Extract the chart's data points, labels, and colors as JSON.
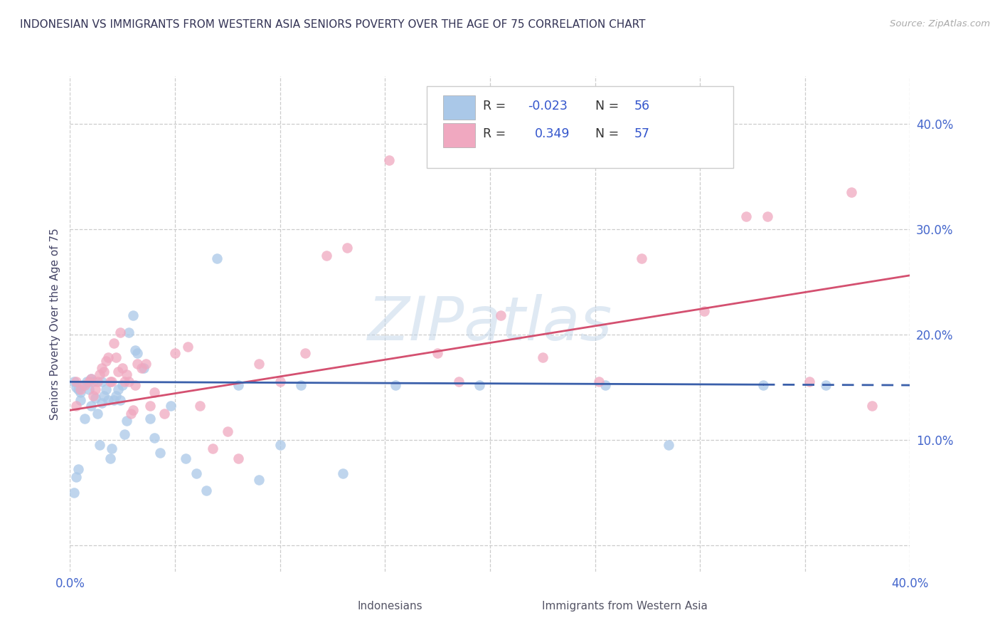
{
  "title": "INDONESIAN VS IMMIGRANTS FROM WESTERN ASIA SENIORS POVERTY OVER THE AGE OF 75 CORRELATION CHART",
  "source": "Source: ZipAtlas.com",
  "ylabel": "Seniors Poverty Over the Age of 75",
  "xlim": [
    0.0,
    0.4
  ],
  "ylim": [
    -0.025,
    0.445
  ],
  "R_blue": -0.023,
  "N_blue": 56,
  "R_pink": 0.349,
  "N_pink": 57,
  "blue_color": "#aac8e8",
  "pink_color": "#f0a8c0",
  "blue_line_color": "#3a5faa",
  "pink_line_color": "#d45070",
  "label_blue": "Indonesians",
  "label_pink": "Immigrants from Western Asia",
  "watermark": "ZIPatlas",
  "blue_x": [
    0.002,
    0.003,
    0.004,
    0.005,
    0.005,
    0.006,
    0.007,
    0.008,
    0.009,
    0.01,
    0.01,
    0.011,
    0.012,
    0.013,
    0.014,
    0.015,
    0.015,
    0.016,
    0.017,
    0.018,
    0.019,
    0.02,
    0.021,
    0.022,
    0.023,
    0.024,
    0.025,
    0.026,
    0.027,
    0.028,
    0.03,
    0.031,
    0.032,
    0.035,
    0.038,
    0.04,
    0.043,
    0.048,
    0.055,
    0.06,
    0.065,
    0.07,
    0.08,
    0.09,
    0.1,
    0.11,
    0.13,
    0.155,
    0.195,
    0.255,
    0.285,
    0.33,
    0.36,
    0.002,
    0.003,
    0.004
  ],
  "blue_y": [
    0.155,
    0.15,
    0.148,
    0.145,
    0.138,
    0.152,
    0.12,
    0.155,
    0.148,
    0.158,
    0.132,
    0.155,
    0.14,
    0.125,
    0.095,
    0.155,
    0.135,
    0.142,
    0.148,
    0.138,
    0.082,
    0.092,
    0.138,
    0.142,
    0.148,
    0.138,
    0.152,
    0.105,
    0.118,
    0.202,
    0.218,
    0.185,
    0.182,
    0.168,
    0.12,
    0.102,
    0.088,
    0.132,
    0.082,
    0.068,
    0.052,
    0.272,
    0.152,
    0.062,
    0.095,
    0.152,
    0.068,
    0.152,
    0.152,
    0.152,
    0.095,
    0.152,
    0.152,
    0.05,
    0.065,
    0.072
  ],
  "pink_x": [
    0.003,
    0.005,
    0.007,
    0.009,
    0.01,
    0.011,
    0.012,
    0.013,
    0.014,
    0.015,
    0.016,
    0.017,
    0.018,
    0.019,
    0.02,
    0.021,
    0.022,
    0.023,
    0.024,
    0.025,
    0.026,
    0.027,
    0.028,
    0.029,
    0.03,
    0.031,
    0.032,
    0.034,
    0.036,
    0.038,
    0.04,
    0.045,
    0.05,
    0.056,
    0.062,
    0.068,
    0.075,
    0.08,
    0.09,
    0.1,
    0.112,
    0.122,
    0.132,
    0.152,
    0.175,
    0.185,
    0.205,
    0.225,
    0.252,
    0.272,
    0.302,
    0.322,
    0.332,
    0.352,
    0.372,
    0.382,
    0.003
  ],
  "pink_y": [
    0.132,
    0.148,
    0.152,
    0.155,
    0.158,
    0.142,
    0.148,
    0.155,
    0.162,
    0.168,
    0.165,
    0.175,
    0.178,
    0.155,
    0.155,
    0.192,
    0.178,
    0.165,
    0.202,
    0.168,
    0.155,
    0.162,
    0.155,
    0.125,
    0.128,
    0.152,
    0.172,
    0.168,
    0.172,
    0.132,
    0.145,
    0.125,
    0.182,
    0.188,
    0.132,
    0.092,
    0.108,
    0.082,
    0.172,
    0.155,
    0.182,
    0.275,
    0.282,
    0.365,
    0.182,
    0.155,
    0.218,
    0.178,
    0.155,
    0.272,
    0.222,
    0.312,
    0.312,
    0.155,
    0.335,
    0.132,
    0.155
  ],
  "blue_intercept": 0.155,
  "blue_slope": -0.008,
  "pink_intercept": 0.128,
  "pink_slope": 0.32
}
